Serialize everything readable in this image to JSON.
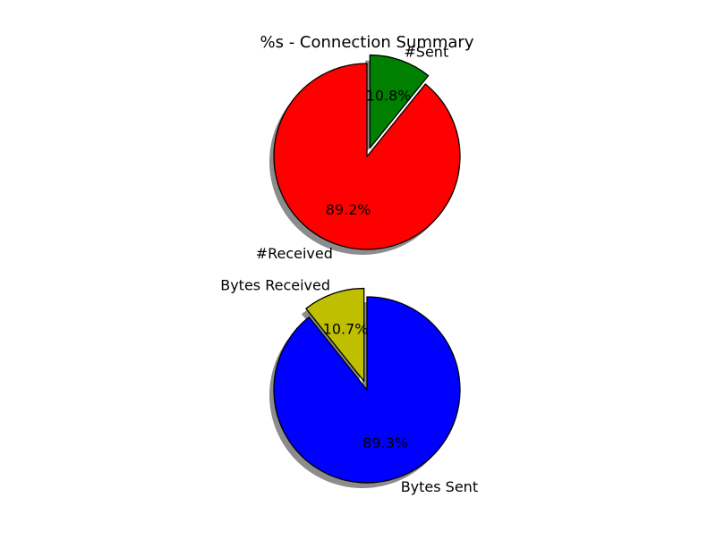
{
  "chart_data": [
    {
      "type": "pie",
      "title": "%s - Connection Summary",
      "slices": [
        {
          "label": "#Received",
          "value": 89.2,
          "pct_label": "89.2%",
          "color": "#ff0000",
          "exploded": false
        },
        {
          "label": "#Sent",
          "value": 10.8,
          "pct_label": "10.8%",
          "color": "#008000",
          "exploded": true
        }
      ],
      "shadow": true,
      "start": "vertical-top",
      "direction": "counter-clockwise"
    },
    {
      "type": "pie",
      "title": "",
      "slices": [
        {
          "label": "Bytes Sent",
          "value": 89.3,
          "pct_label": "89.3%",
          "color": "#0000ff",
          "exploded": false
        },
        {
          "label": "Bytes Received",
          "value": 10.7,
          "pct_label": "10.7%",
          "color": "#bfbf00",
          "exploded": true
        }
      ],
      "shadow": true,
      "start": "vertical-top",
      "direction": "clockwise"
    }
  ]
}
